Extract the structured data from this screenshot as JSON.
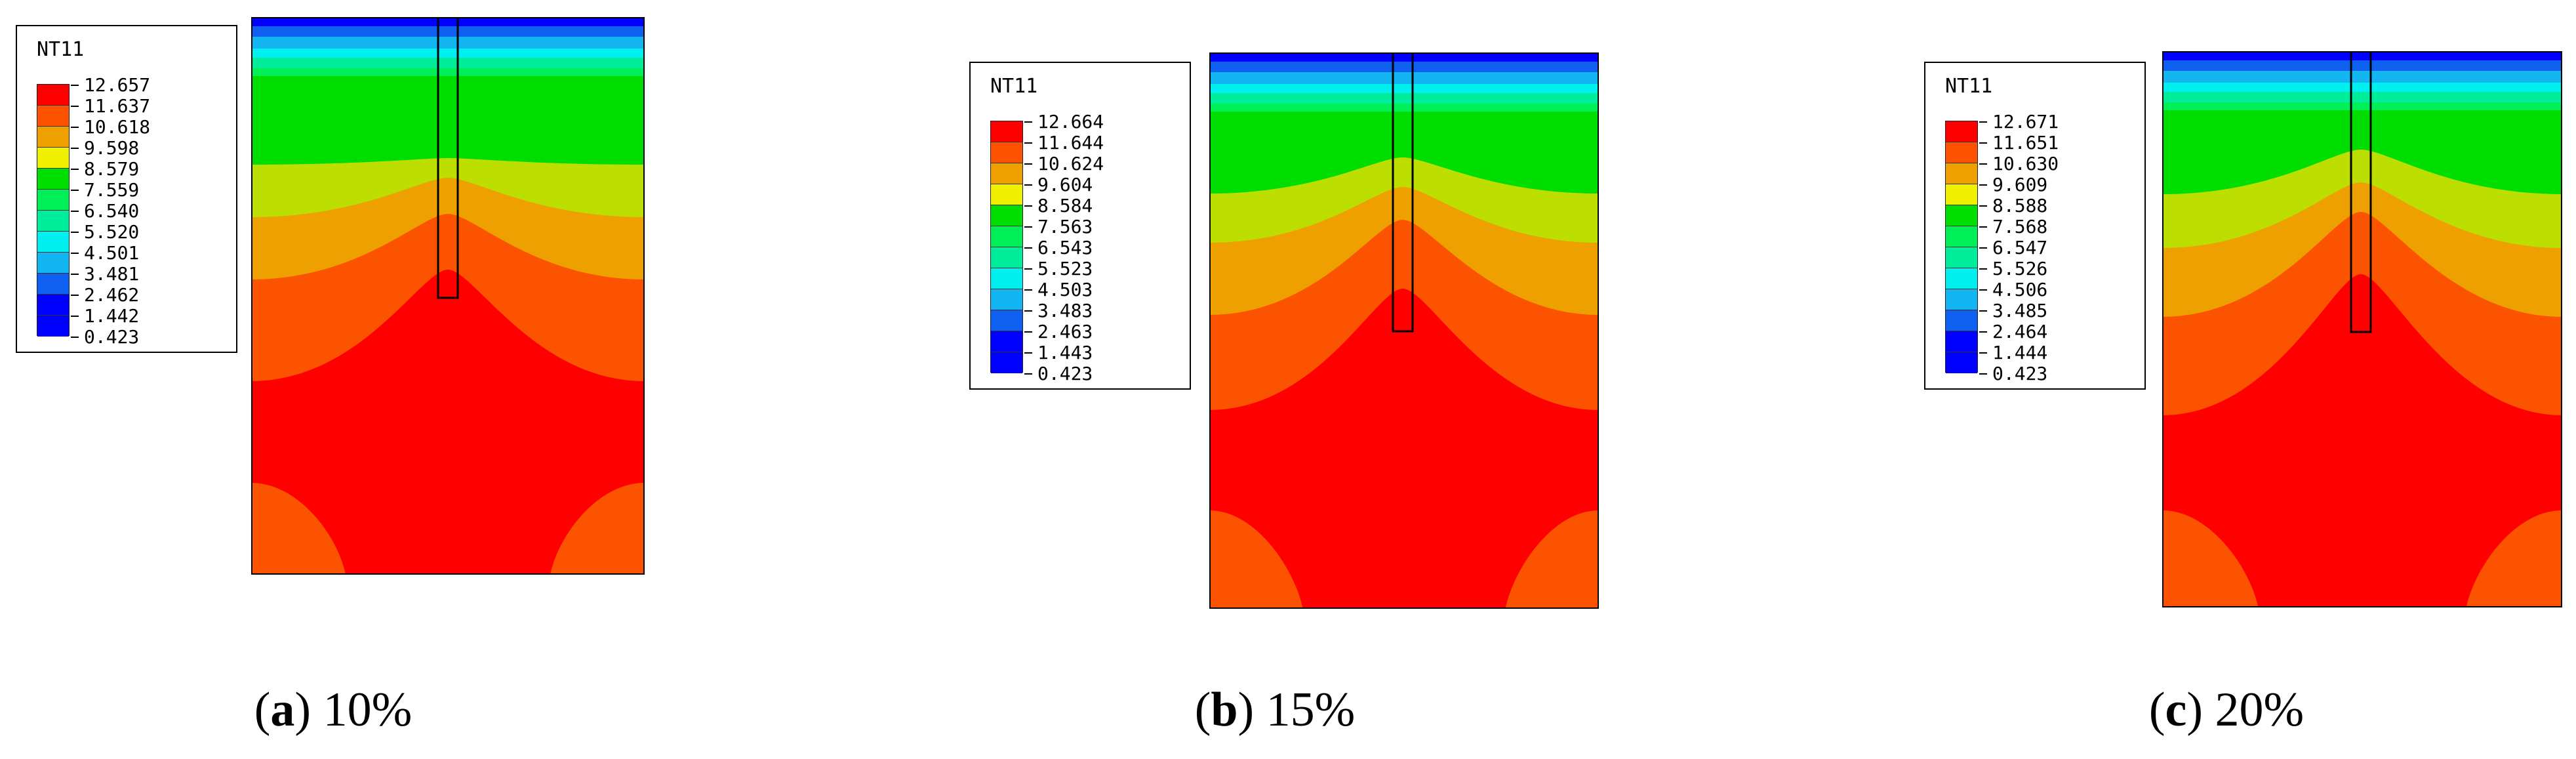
{
  "colors": {
    "band_0": "#0000ff",
    "band_1": "#0f5ff0",
    "band_2": "#13b6f0",
    "band_3": "#00f0f0",
    "band_4": "#00ee9c",
    "band_5": "#00ee56",
    "band_6": "#00dd00",
    "band_7": "#bcde00",
    "band_8": "#f0f000",
    "band_9": "#eea000",
    "band_10": "#fc5300",
    "band_11": "#ff0000",
    "outline": "#000000"
  },
  "panels": [
    {
      "legend": {
        "title": "NT11",
        "values": [
          "12.657",
          "11.637",
          "10.618",
          "9.598",
          "8.579",
          "7.559",
          "6.540",
          "5.520",
          "4.501",
          "3.481",
          "2.462",
          "1.442",
          "0.423"
        ]
      },
      "caption": {
        "tag": "a",
        "value": "10%"
      }
    },
    {
      "legend": {
        "title": "NT11",
        "values": [
          "12.664",
          "11.644",
          "10.624",
          "9.604",
          "8.584",
          "7.563",
          "6.543",
          "5.523",
          "4.503",
          "3.483",
          "2.463",
          "1.443",
          "0.423"
        ]
      },
      "caption": {
        "tag": "b",
        "value": "15%"
      }
    },
    {
      "legend": {
        "title": "NT11",
        "values": [
          "12.671",
          "11.651",
          "10.630",
          "9.609",
          "8.588",
          "7.568",
          "6.547",
          "5.526",
          "4.506",
          "3.485",
          "2.464",
          "1.444",
          "0.423"
        ]
      },
      "caption": {
        "tag": "c",
        "value": "20%"
      }
    }
  ]
}
